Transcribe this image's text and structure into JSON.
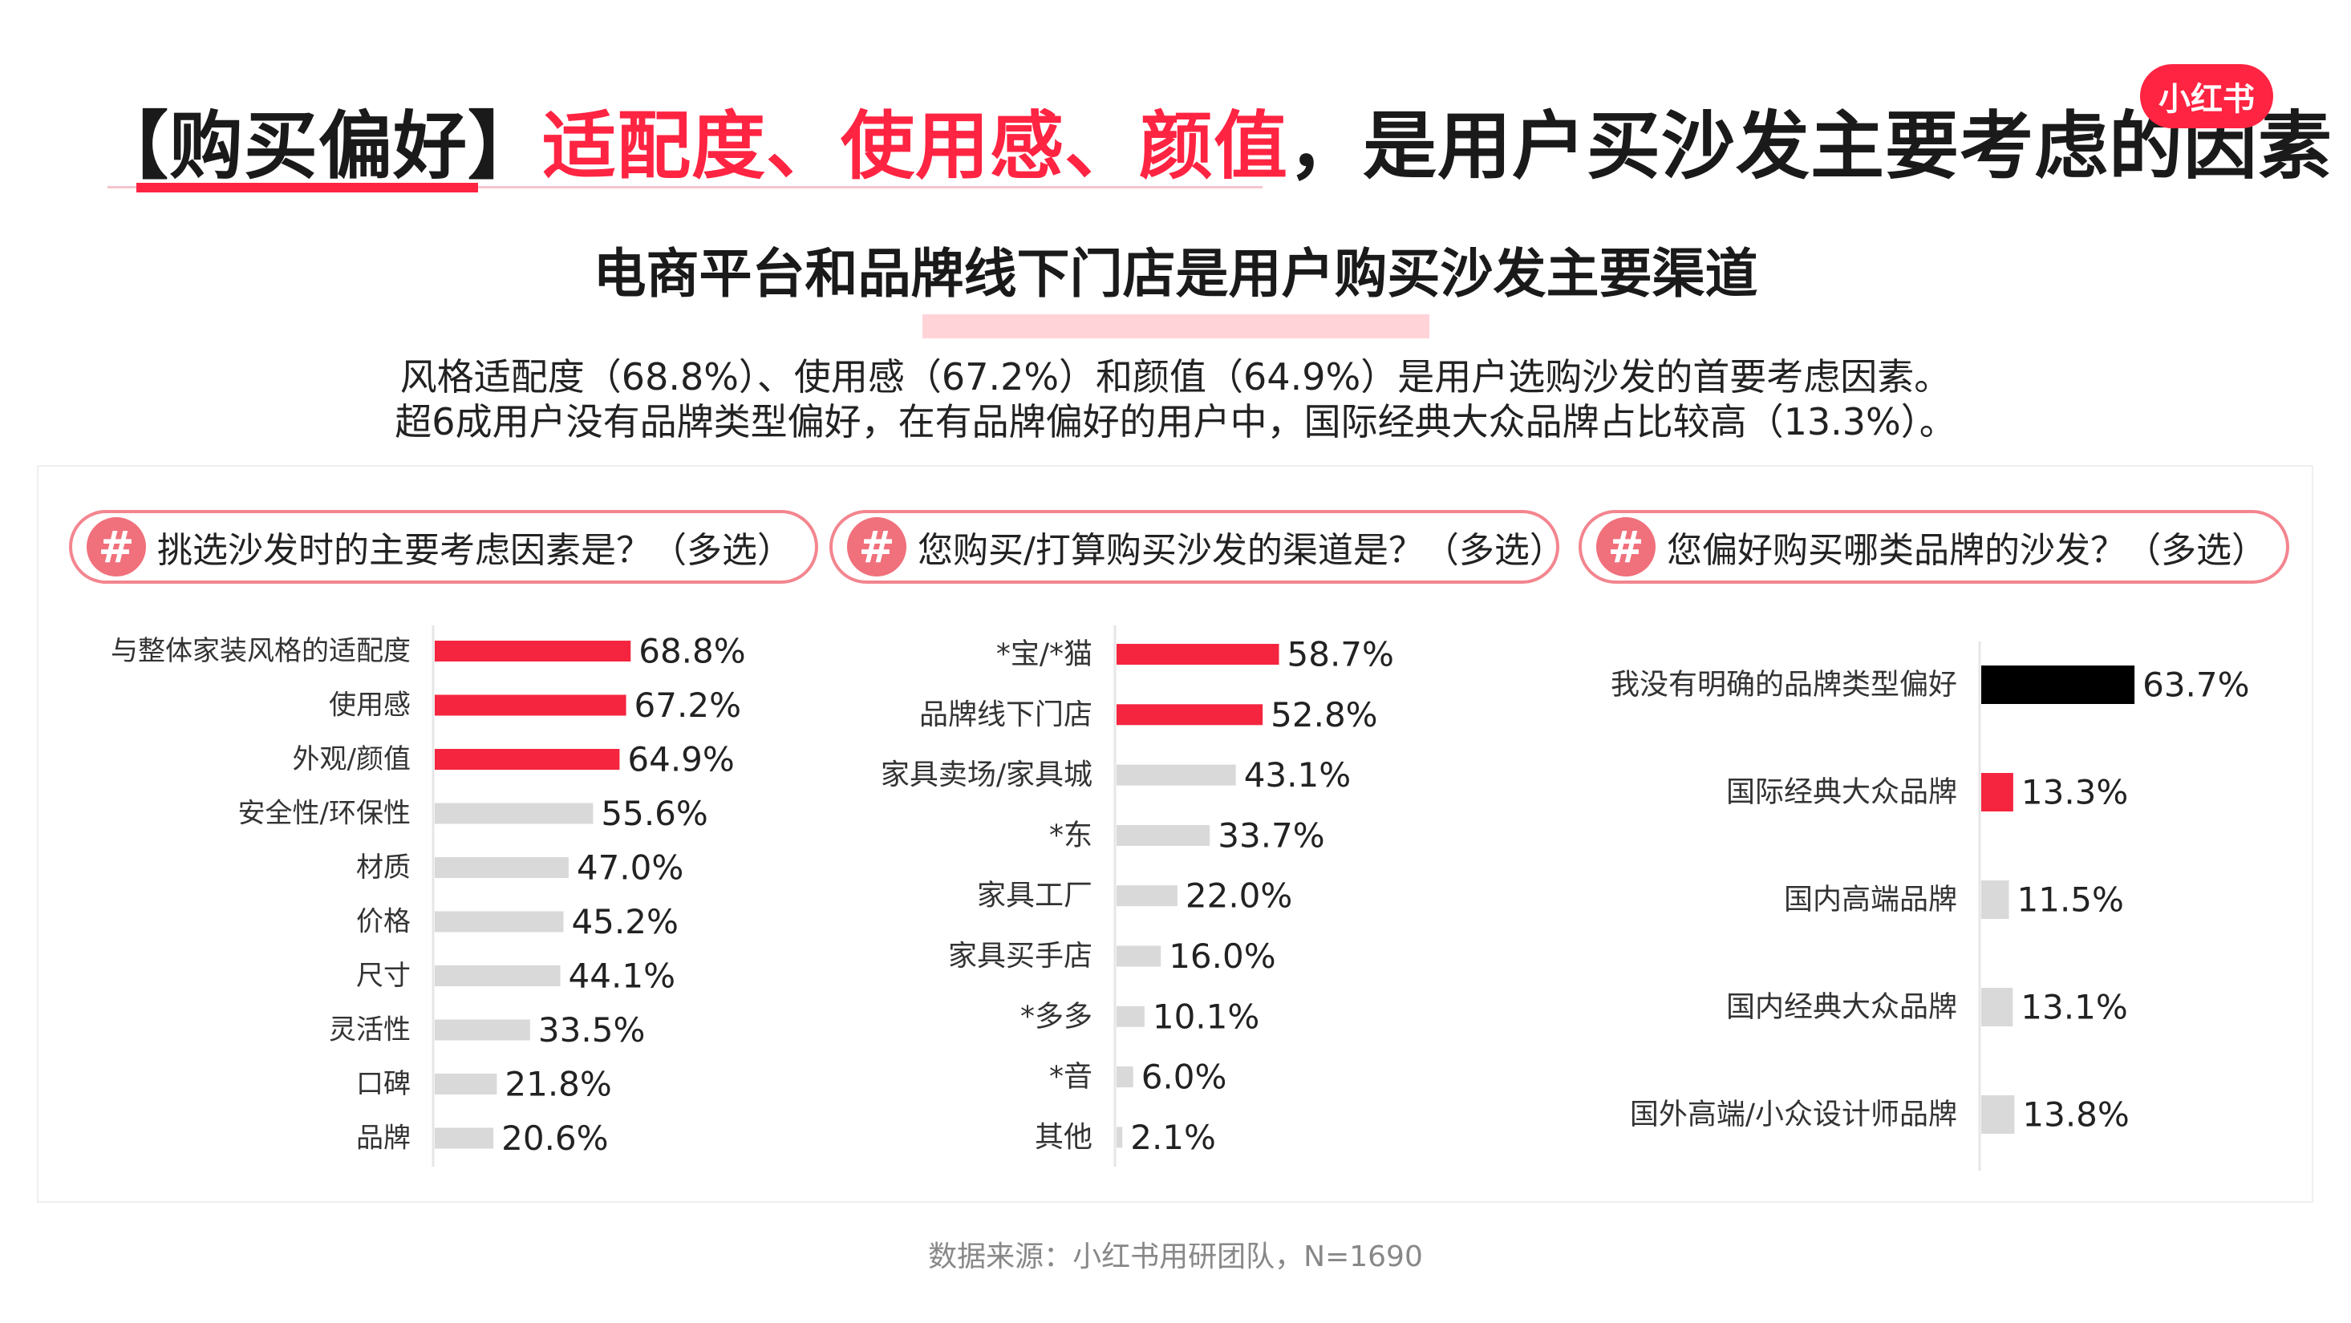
{
  "header": {
    "title_bracket": "【购买偏好】",
    "title_highlight": "适配度、使用感、颜值",
    "title_rest": "，是用户买沙发主要考虑的因素",
    "logo": "小红书"
  },
  "subtitle": "电商平台和品牌线下门店是用户购买沙发主要渠道",
  "summary": [
    "风格适配度（68.8%）、使用感（67.2%）和颜值（64.9%）是用户选购沙发的首要考虑因素。",
    "超6成用户没有品牌类型偏好，在有品牌偏好的用户中，国际经典大众品牌占比较高（13.3%）。"
  ],
  "colors": {
    "accent": "#ff2442",
    "highlight_bar": "#f5253f",
    "neutral_bar": "#d9d9d9",
    "dark_bar": "#000000",
    "pill_border": "#f3858f"
  },
  "chart_data": [
    {
      "type": "bar",
      "orientation": "horizontal",
      "title": "挑选沙发时的主要考虑因素是？（多选）",
      "categories": [
        "与整体家装风格的适配度",
        "使用感",
        "外观/颜值",
        "安全性/环保性",
        "材质",
        "价格",
        "尺寸",
        "灵活性",
        "口碑",
        "品牌"
      ],
      "values": [
        68.8,
        67.2,
        64.9,
        55.6,
        47.0,
        45.2,
        44.1,
        33.5,
        21.8,
        20.6
      ],
      "labels": [
        "68.8%",
        "67.2%",
        "64.9%",
        "55.6%",
        "47.0%",
        "45.2%",
        "44.1%",
        "33.5%",
        "21.8%",
        "20.6%"
      ],
      "highlighted": [
        true,
        true,
        true,
        false,
        false,
        false,
        false,
        false,
        false,
        false
      ],
      "unit": "%"
    },
    {
      "type": "bar",
      "orientation": "horizontal",
      "title": "您购买/打算购买沙发的渠道是？（多选）",
      "categories": [
        "*宝/*猫",
        "品牌线下门店",
        "家具卖场/家具城",
        "*东",
        "家具工厂",
        "家具买手店",
        "*多多",
        "*音",
        "其他"
      ],
      "values": [
        58.7,
        52.8,
        43.1,
        33.7,
        22.0,
        16.0,
        10.1,
        6.0,
        2.1
      ],
      "labels": [
        "58.7%",
        "52.8%",
        "43.1%",
        "33.7%",
        "22.0%",
        "16.0%",
        "10.1%",
        "6.0%",
        "2.1%"
      ],
      "highlighted": [
        true,
        true,
        false,
        false,
        false,
        false,
        false,
        false,
        false
      ],
      "unit": "%"
    },
    {
      "type": "bar",
      "orientation": "horizontal",
      "title": "您偏好购买哪类品牌的沙发？（多选）",
      "categories": [
        "我没有明确的品牌类型偏好",
        "国际经典大众品牌",
        "国内高端品牌",
        "国内经典大众品牌",
        "国外高端/小众设计师品牌"
      ],
      "values": [
        63.7,
        13.3,
        11.5,
        13.1,
        13.8
      ],
      "labels": [
        "63.7%",
        "13.3%",
        "11.5%",
        "13.1%",
        "13.8%"
      ],
      "highlighted": [
        false,
        true,
        false,
        false,
        false
      ],
      "dark": [
        true,
        false,
        false,
        false,
        false
      ],
      "unit": "%"
    }
  ],
  "source": "数据来源：小红书用研团队，N=1690"
}
